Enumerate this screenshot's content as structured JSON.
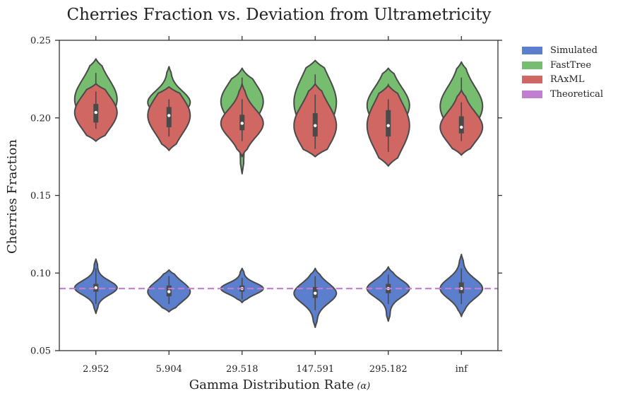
{
  "chart_data": {
    "type": "violin",
    "title": "Cherries Fraction vs. Deviation from Ultrametricity",
    "xlabel": "Gamma Distribution Rate",
    "xlabel_symbol": "(α)",
    "ylabel": "Cherries Fraction",
    "categories": [
      "2.952",
      "5.904",
      "29.518",
      "147.591",
      "295.182",
      "inf"
    ],
    "ylim": [
      0.05,
      0.25
    ],
    "yticks": [
      "0.05",
      "0.10",
      "0.15",
      "0.20",
      "0.25"
    ],
    "ytick_values": [
      0.05,
      0.1,
      0.15,
      0.2,
      0.25
    ],
    "grid": false,
    "legend_position": "outside-top-right",
    "reference_line": {
      "name": "Theoretical",
      "value": 0.09,
      "style": "dashed",
      "color": "#c17fd1"
    },
    "series": [
      {
        "name": "Simulated",
        "color": "#5b7fcc",
        "violins": [
          {
            "min": 0.074,
            "max": 0.109,
            "q1": 0.088,
            "median": 0.0905,
            "q3": 0.093,
            "lo": 0.08,
            "hi": 0.103
          },
          {
            "min": 0.075,
            "max": 0.102,
            "q1": 0.085,
            "median": 0.088,
            "q3": 0.092,
            "lo": 0.08,
            "hi": 0.098
          },
          {
            "min": 0.081,
            "max": 0.103,
            "q1": 0.088,
            "median": 0.09,
            "q3": 0.092,
            "lo": 0.083,
            "hi": 0.097
          },
          {
            "min": 0.065,
            "max": 0.103,
            "q1": 0.084,
            "median": 0.087,
            "q3": 0.091,
            "lo": 0.076,
            "hi": 0.098
          },
          {
            "min": 0.069,
            "max": 0.104,
            "q1": 0.087,
            "median": 0.09,
            "q3": 0.093,
            "lo": 0.08,
            "hi": 0.099
          },
          {
            "min": 0.072,
            "max": 0.112,
            "q1": 0.087,
            "median": 0.09,
            "q3": 0.094,
            "lo": 0.08,
            "hi": 0.103
          }
        ]
      },
      {
        "name": "FastTree",
        "color": "#77bd6f",
        "violins": [
          {
            "min": 0.193,
            "max": 0.238,
            "q1": 0.207,
            "median": 0.212,
            "q3": 0.221,
            "lo": 0.198,
            "hi": 0.229
          },
          {
            "min": 0.197,
            "max": 0.233,
            "q1": 0.205,
            "median": 0.21,
            "q3": 0.213,
            "lo": 0.2,
            "hi": 0.22
          },
          {
            "min": 0.164,
            "max": 0.232,
            "q1": 0.204,
            "median": 0.2105,
            "q3": 0.217,
            "lo": 0.18,
            "hi": 0.226
          },
          {
            "min": 0.19,
            "max": 0.237,
            "q1": 0.2,
            "median": 0.21,
            "q3": 0.218,
            "lo": 0.193,
            "hi": 0.228
          },
          {
            "min": 0.197,
            "max": 0.232,
            "q1": 0.2,
            "median": 0.208,
            "q3": 0.213,
            "lo": 0.195,
            "hi": 0.222
          },
          {
            "min": 0.193,
            "max": 0.236,
            "q1": 0.201,
            "median": 0.2075,
            "q3": 0.215,
            "lo": 0.195,
            "hi": 0.226
          }
        ]
      },
      {
        "name": "RAxML",
        "color": "#d06763",
        "violins": [
          {
            "min": 0.185,
            "max": 0.222,
            "q1": 0.197,
            "median": 0.2035,
            "q3": 0.209,
            "lo": 0.193,
            "hi": 0.217
          },
          {
            "min": 0.179,
            "max": 0.22,
            "q1": 0.194,
            "median": 0.2015,
            "q3": 0.207,
            "lo": 0.188,
            "hi": 0.212
          },
          {
            "min": 0.175,
            "max": 0.222,
            "q1": 0.192,
            "median": 0.1965,
            "q3": 0.202,
            "lo": 0.185,
            "hi": 0.212
          },
          {
            "min": 0.175,
            "max": 0.222,
            "q1": 0.188,
            "median": 0.195,
            "q3": 0.203,
            "lo": 0.18,
            "hi": 0.215
          },
          {
            "min": 0.169,
            "max": 0.221,
            "q1": 0.188,
            "median": 0.195,
            "q3": 0.205,
            "lo": 0.178,
            "hi": 0.212
          },
          {
            "min": 0.176,
            "max": 0.218,
            "q1": 0.19,
            "median": 0.194,
            "q3": 0.201,
            "lo": 0.185,
            "hi": 0.21
          }
        ]
      }
    ],
    "legend": [
      {
        "label": "Simulated",
        "color": "#5b7fcc"
      },
      {
        "label": "FastTree",
        "color": "#77bd6f"
      },
      {
        "label": "RAxML",
        "color": "#d06763"
      },
      {
        "label": "Theoretical",
        "color": "#c17fd1"
      }
    ]
  }
}
